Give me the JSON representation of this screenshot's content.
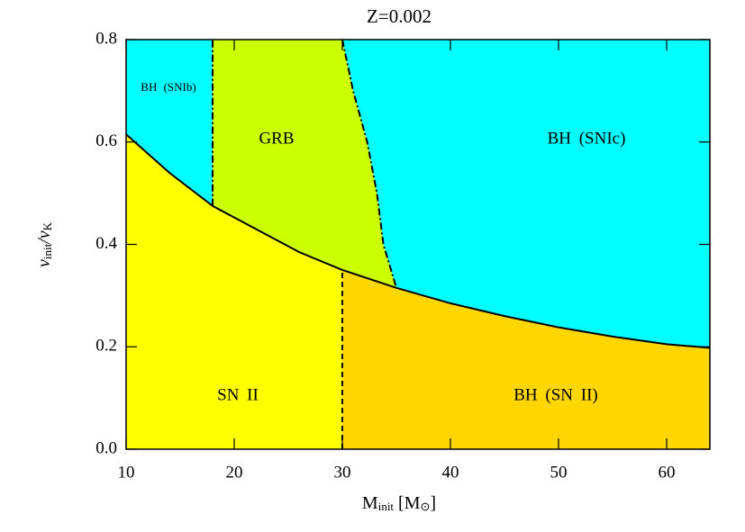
{
  "chart_data": {
    "type": "region",
    "title": "Z=0.002",
    "x_label": [
      "M",
      "init",
      " [M",
      "⊙",
      "]"
    ],
    "y_label": [
      "v",
      "init",
      "/v",
      "K"
    ],
    "xlim": [
      10,
      64
    ],
    "ylim": [
      0,
      0.8
    ],
    "xticks": [
      10,
      20,
      30,
      40,
      50,
      60
    ],
    "yticks": [
      {
        "value": 0,
        "label": "0.0"
      },
      0.2,
      0.4,
      0.6,
      0.8
    ],
    "lower_boundary": {
      "x": [
        10,
        14,
        18,
        22,
        26,
        30,
        35,
        40,
        45,
        50,
        55,
        60,
        64
      ],
      "y": [
        0.615,
        0.54,
        0.475,
        0.43,
        0.385,
        0.35,
        0.315,
        0.285,
        0.26,
        0.238,
        0.22,
        0.205,
        0.198
      ]
    },
    "snib_boundary": {
      "x": [
        18,
        18
      ],
      "y": [
        0.475,
        0.8
      ]
    },
    "grb_boundary": {
      "x": [
        30,
        31,
        32.3,
        33.2,
        33.8,
        35
      ],
      "y": [
        0.8,
        0.7,
        0.6,
        0.5,
        0.4,
        0.315
      ]
    },
    "sn_boundary": {
      "x": [
        30,
        30
      ],
      "y": [
        0,
        0.35
      ]
    },
    "regions": [
      {
        "label": "BH (SNIb)",
        "color": "#00ffff"
      },
      {
        "label": "GRB",
        "color": "#ccff00"
      },
      {
        "label": "BH (SNIc)",
        "color": "#00ffff"
      },
      {
        "label": "SN II",
        "color": "#ffff00"
      },
      {
        "label": "BH (SN II)",
        "color": "#ffd700"
      }
    ]
  }
}
